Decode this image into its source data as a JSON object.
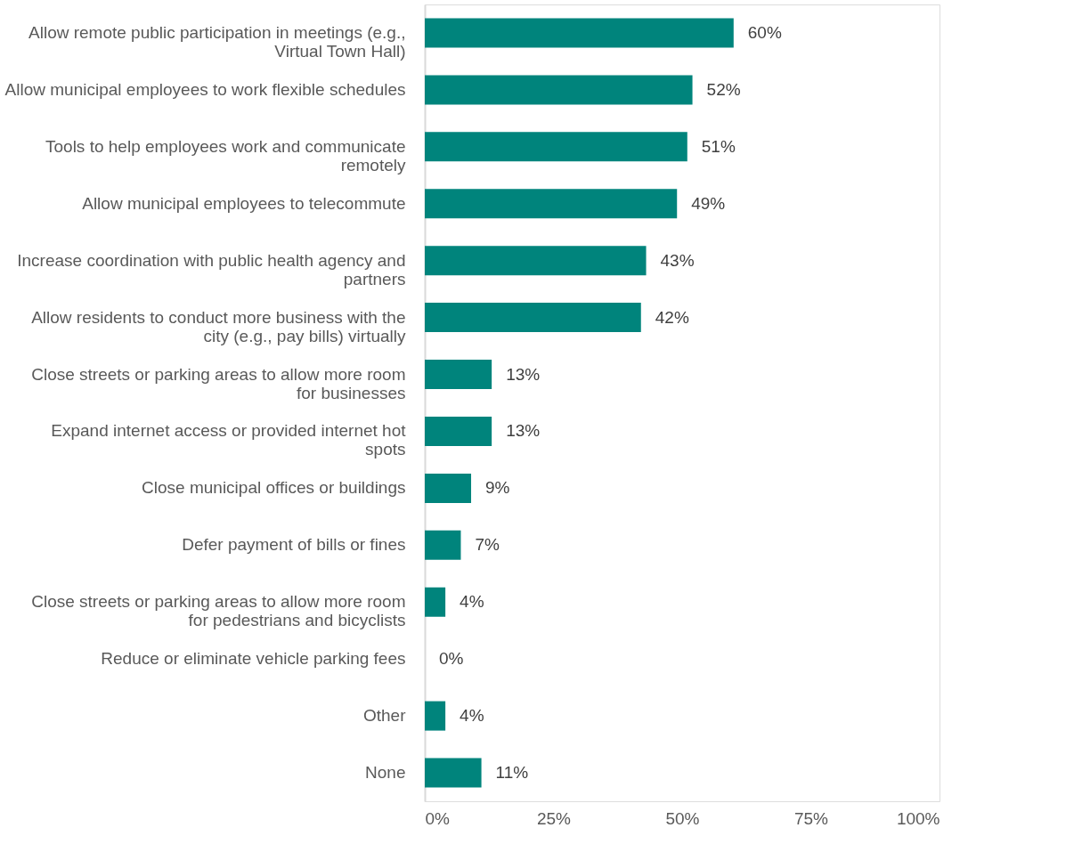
{
  "chart_data": {
    "type": "bar",
    "orientation": "horizontal",
    "categories": [
      "Allow remote public participation in meetings (e.g., Virtual Town Hall)",
      "Allow municipal employees to work flexible schedules",
      "Tools to help employees work and communicate remotely",
      "Allow municipal employees to telecommute",
      "Increase coordination with public health agency and partners",
      "Allow residents to conduct more business with the city (e.g., pay bills) virtually",
      "Close streets or parking areas to allow more room for businesses",
      "Expand internet access or provided internet hot spots",
      "Close municipal offices or buildings",
      "Defer payment of bills or fines",
      "Close streets or parking areas to allow more room for pedestrians and bicyclists",
      "Reduce or eliminate vehicle parking fees",
      "Other",
      "None"
    ],
    "values": [
      60,
      52,
      51,
      49,
      43,
      42,
      13,
      13,
      9,
      7,
      4,
      0,
      4,
      11
    ],
    "value_labels": [
      "60%",
      "52%",
      "51%",
      "49%",
      "43%",
      "42%",
      "13%",
      "13%",
      "9%",
      "7%",
      "4%",
      "0%",
      "4%",
      "11%"
    ],
    "color": "#00847c",
    "xlim": [
      0,
      100
    ],
    "xticks": [
      {
        "value": 0,
        "label": "0%"
      },
      {
        "value": 25,
        "label": "25%"
      },
      {
        "value": 50,
        "label": "50%"
      },
      {
        "value": 75,
        "label": "75%"
      },
      {
        "value": 100,
        "label": "100%"
      }
    ],
    "grid": false
  }
}
